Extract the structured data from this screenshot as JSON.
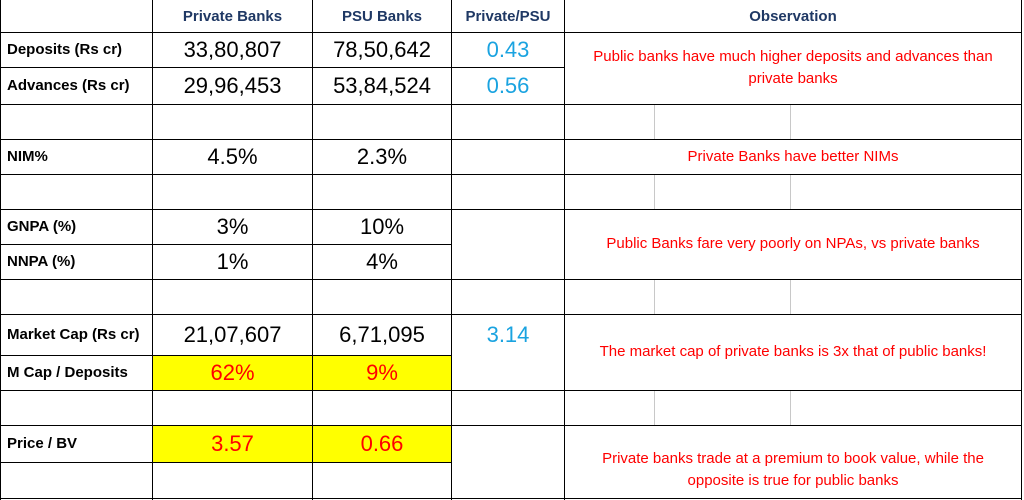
{
  "headers": {
    "private": "Private Banks",
    "psu": "PSU Banks",
    "ratio": "Private/PSU",
    "observation": "Observation"
  },
  "rows": {
    "deposits": {
      "label": "Deposits (Rs cr)",
      "private": "33,80,807",
      "psu": "78,50,642",
      "ratio": "0.43"
    },
    "advances": {
      "label": "Advances (Rs cr)",
      "private": "29,96,453",
      "psu": "53,84,524",
      "ratio": "0.56"
    },
    "nim": {
      "label": "NIM%",
      "private": "4.5%",
      "psu": "2.3%"
    },
    "gnpa": {
      "label": "GNPA (%)",
      "private": "3%",
      "psu": "10%"
    },
    "nnpa": {
      "label": "NNPA (%)",
      "private": "1%",
      "psu": "4%"
    },
    "mcap": {
      "label": "Market Cap (Rs cr)",
      "private": "21,07,607",
      "psu": "6,71,095",
      "ratio": "3.14"
    },
    "mcap_dep": {
      "label": "M Cap / Deposits",
      "private": "62%",
      "psu": "9%"
    },
    "pbv": {
      "label": "Price / BV",
      "private": "3.57",
      "psu": "0.66"
    }
  },
  "observations": {
    "deposits_advances": "Public banks have much higher deposits and advances than private banks",
    "nim": "Private Banks have better NIMs",
    "npa": "Public Banks fare very poorly on NPAs, vs private banks",
    "mcap": "The market cap of private banks is 3x that of public banks!",
    "pbv": "Private banks trade at a premium to book value, while the opposite is true for public banks"
  },
  "colors": {
    "header": "#1f3864",
    "ratio": "#1aa3e0",
    "observation": "#ff0000",
    "highlight": "#ffff00"
  }
}
